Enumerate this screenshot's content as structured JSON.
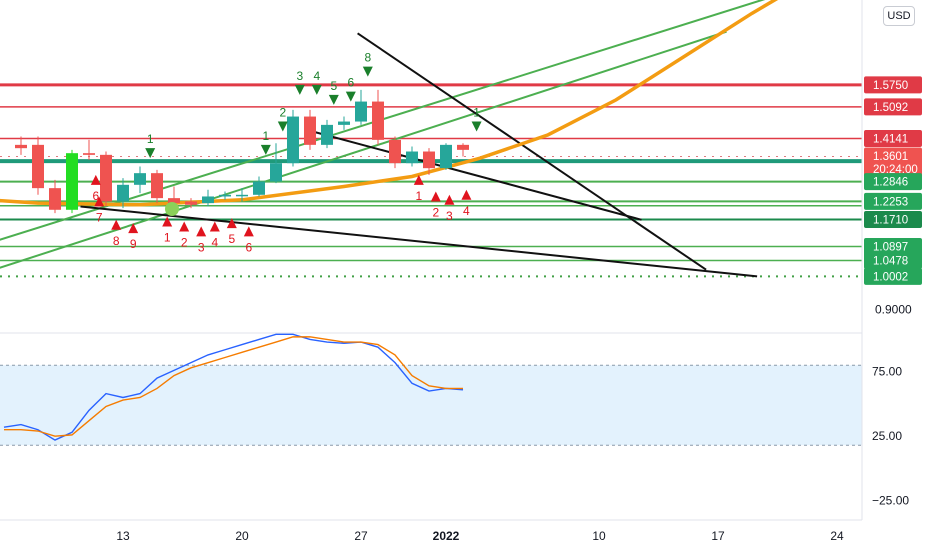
{
  "currency": "USD",
  "chart_data": {
    "type": "candlestick",
    "price_axis": {
      "ylim": [
        0.83,
        1.83
      ],
      "labels": [
        {
          "value": 0.9,
          "text": "0.9000"
        }
      ],
      "badges": [
        {
          "value": 1.575,
          "text": "1.5750",
          "color": "#e03a46"
        },
        {
          "value": 1.5092,
          "text": "1.5092",
          "color": "#e03a46"
        },
        {
          "value": 1.4141,
          "text": "1.4141",
          "color": "#e03a46"
        },
        {
          "value": 1.3601,
          "text": "1.3601",
          "sub": "20:24:00",
          "color": "#ef5350"
        },
        {
          "value": 1.2846,
          "text": "1.2846",
          "color": "#26a65b"
        },
        {
          "value": 1.2253,
          "text": "1.2253",
          "color": "#26a65b"
        },
        {
          "value": 1.171,
          "text": "1.1710",
          "color": "#1b8a4c"
        },
        {
          "value": 1.0897,
          "text": "1.0897",
          "color": "#26a65b"
        },
        {
          "value": 1.0478,
          "text": "1.0478",
          "color": "#26a65b"
        },
        {
          "value": 1.0002,
          "text": "1.0002",
          "color": "#26a65b"
        }
      ]
    },
    "time_axis": {
      "labels": [
        {
          "day": 13,
          "text": "13"
        },
        {
          "day": 20,
          "text": "20"
        },
        {
          "day": 27,
          "text": "27"
        },
        {
          "day": 32,
          "text": "2022",
          "bold": true
        },
        {
          "day": 41,
          "text": "10"
        },
        {
          "day": 48,
          "text": "17"
        },
        {
          "day": 55,
          "text": "24"
        }
      ]
    },
    "candles": [
      {
        "day": 7,
        "open": 1.395,
        "high": 1.42,
        "low": 1.365,
        "close": 1.385
      },
      {
        "day": 8,
        "open": 1.395,
        "high": 1.42,
        "low": 1.245,
        "close": 1.265
      },
      {
        "day": 9,
        "open": 1.265,
        "high": 1.29,
        "low": 1.19,
        "close": 1.2
      },
      {
        "day": 10,
        "open": 1.2,
        "high": 1.38,
        "low": 1.19,
        "close": 1.37,
        "color": "#22dd22"
      },
      {
        "day": 11,
        "open": 1.37,
        "high": 1.41,
        "low": 1.35,
        "close": 1.365
      },
      {
        "day": 12,
        "open": 1.365,
        "high": 1.375,
        "low": 1.21,
        "close": 1.225
      },
      {
        "day": 13,
        "open": 1.225,
        "high": 1.295,
        "low": 1.205,
        "close": 1.275
      },
      {
        "day": 14,
        "open": 1.275,
        "high": 1.33,
        "low": 1.25,
        "close": 1.31
      },
      {
        "day": 15,
        "open": 1.31,
        "high": 1.32,
        "low": 1.22,
        "close": 1.235
      },
      {
        "day": 16,
        "open": 1.235,
        "high": 1.27,
        "low": 1.205,
        "close": 1.22
      },
      {
        "day": 17,
        "open": 1.225,
        "high": 1.235,
        "low": 1.205,
        "close": 1.215
      },
      {
        "day": 18,
        "open": 1.22,
        "high": 1.26,
        "low": 1.21,
        "close": 1.24
      },
      {
        "day": 19,
        "open": 1.24,
        "high": 1.255,
        "low": 1.23,
        "close": 1.245
      },
      {
        "day": 20,
        "open": 1.245,
        "high": 1.265,
        "low": 1.225,
        "close": 1.245
      },
      {
        "day": 21,
        "open": 1.245,
        "high": 1.3,
        "low": 1.24,
        "close": 1.285
      },
      {
        "day": 22,
        "open": 1.285,
        "high": 1.4,
        "low": 1.28,
        "close": 1.34
      },
      {
        "day": 23,
        "open": 1.34,
        "high": 1.5,
        "low": 1.33,
        "close": 1.48
      },
      {
        "day": 24,
        "open": 1.48,
        "high": 1.5,
        "low": 1.38,
        "close": 1.395
      },
      {
        "day": 25,
        "open": 1.395,
        "high": 1.47,
        "low": 1.385,
        "close": 1.455
      },
      {
        "day": 26,
        "open": 1.455,
        "high": 1.48,
        "low": 1.44,
        "close": 1.465
      },
      {
        "day": 27,
        "open": 1.465,
        "high": 1.56,
        "low": 1.455,
        "close": 1.525
      },
      {
        "day": 28,
        "open": 1.525,
        "high": 1.56,
        "low": 1.395,
        "close": 1.41
      },
      {
        "day": 29,
        "open": 1.41,
        "high": 1.42,
        "low": 1.325,
        "close": 1.34
      },
      {
        "day": 30,
        "open": 1.34,
        "high": 1.39,
        "low": 1.33,
        "close": 1.375
      },
      {
        "day": 31,
        "open": 1.375,
        "high": 1.385,
        "low": 1.305,
        "close": 1.325
      },
      {
        "day": 32,
        "open": 1.325,
        "high": 1.4,
        "low": 1.32,
        "close": 1.395
      },
      {
        "day": 33,
        "open": 1.395,
        "high": 1.4,
        "low": 1.36,
        "close": 1.38
      }
    ],
    "horizontal_levels": [
      {
        "value": 1.575,
        "color": "#e03a46",
        "width": 3
      },
      {
        "value": 1.5092,
        "color": "#e03a46",
        "width": 1.5
      },
      {
        "value": 1.4141,
        "color": "#e03a46",
        "width": 1.5
      },
      {
        "value": 1.3601,
        "color": "#e07a80",
        "width": 1,
        "style": "dotted"
      },
      {
        "value": 1.346,
        "color": "#1f9a7a",
        "width": 4
      },
      {
        "value": 1.2846,
        "color": "#4caf50",
        "width": 2
      },
      {
        "value": 1.2253,
        "color": "#4caf50",
        "width": 2
      },
      {
        "value": 1.212,
        "color": "#4caf50",
        "width": 1.5
      },
      {
        "value": 1.171,
        "color": "#1b8a4c",
        "width": 2
      },
      {
        "value": 1.0897,
        "color": "#4caf50",
        "width": 1.5
      },
      {
        "value": 1.0478,
        "color": "#4caf50",
        "width": 1.5
      },
      {
        "value": 1.0002,
        "color": "#43a047",
        "width": 2,
        "style": "dotted"
      }
    ],
    "trend_lines": [
      {
        "from": [
          4.5,
          1.005
        ],
        "to": [
          48.5,
          1.735
        ],
        "color": "#4caf50"
      },
      {
        "from": [
          4.5,
          1.09
        ],
        "to": [
          56.5,
          1.925
        ],
        "color": "#4caf50"
      },
      {
        "from": [
          26.8,
          1.73
        ],
        "to": [
          47.3,
          1.02
        ],
        "color": "#111111"
      },
      {
        "from": [
          23.8,
          1.44
        ],
        "to": [
          43.5,
          1.17
        ],
        "color": "#111111"
      },
      {
        "from": [
          10.5,
          1.21
        ],
        "to": [
          50.3,
          1.0
        ],
        "color": "#111111"
      }
    ],
    "ma_curve": {
      "color": "#f39c12",
      "points": [
        [
          2,
          1.24
        ],
        [
          8,
          1.22
        ],
        [
          14,
          1.215
        ],
        [
          20,
          1.23
        ],
        [
          26,
          1.27
        ],
        [
          30,
          1.3
        ],
        [
          34,
          1.355
        ],
        [
          38,
          1.425
        ],
        [
          42,
          1.53
        ],
        [
          46,
          1.66
        ],
        [
          50,
          1.79
        ],
        [
          53,
          1.88
        ]
      ]
    },
    "markers": [
      {
        "day": 11.4,
        "value": 1.29,
        "label": "6",
        "dir": "up",
        "color": "#e0141e"
      },
      {
        "day": 11.6,
        "value": 1.225,
        "label": "7",
        "dir": "up",
        "color": "#e0141e"
      },
      {
        "day": 12.6,
        "value": 1.155,
        "label": "8",
        "dir": "up",
        "color": "#e0141e"
      },
      {
        "day": 13.6,
        "value": 1.145,
        "label": "9",
        "dir": "up",
        "color": "#e0141e"
      },
      {
        "day": 15.6,
        "value": 1.165,
        "label": "1",
        "dir": "up",
        "color": "#e0141e"
      },
      {
        "day": 16.6,
        "value": 1.15,
        "label": "2",
        "dir": "up",
        "color": "#e0141e"
      },
      {
        "day": 17.6,
        "value": 1.135,
        "label": "3",
        "dir": "up",
        "color": "#e0141e"
      },
      {
        "day": 18.4,
        "value": 1.15,
        "label": "4",
        "dir": "up",
        "color": "#e0141e"
      },
      {
        "day": 19.4,
        "value": 1.16,
        "label": "5",
        "dir": "up",
        "color": "#e0141e"
      },
      {
        "day": 20.4,
        "value": 1.135,
        "label": "6",
        "dir": "up",
        "color": "#e0141e"
      },
      {
        "day": 30.4,
        "value": 1.29,
        "label": "1",
        "dir": "up",
        "color": "#e0141e"
      },
      {
        "day": 31.4,
        "value": 1.24,
        "label": "2",
        "dir": "up",
        "color": "#e0141e"
      },
      {
        "day": 32.2,
        "value": 1.23,
        "label": "3",
        "dir": "up",
        "color": "#e0141e"
      },
      {
        "day": 33.2,
        "value": 1.245,
        "label": "4",
        "dir": "up",
        "color": "#e0141e"
      },
      {
        "day": 14.6,
        "value": 1.37,
        "label": "1",
        "dir": "down",
        "color": "#1a7f2b"
      },
      {
        "day": 21.4,
        "value": 1.38,
        "label": "1",
        "dir": "down",
        "color": "#1a7f2b"
      },
      {
        "day": 22.4,
        "value": 1.45,
        "label": "2",
        "dir": "down",
        "color": "#1a7f2b"
      },
      {
        "day": 23.4,
        "value": 1.56,
        "label": "3",
        "dir": "down",
        "color": "#1a7f2b"
      },
      {
        "day": 24.4,
        "value": 1.56,
        "label": "4",
        "dir": "down",
        "color": "#1a7f2b"
      },
      {
        "day": 25.4,
        "value": 1.53,
        "label": "5",
        "dir": "down",
        "color": "#1a7f2b"
      },
      {
        "day": 26.4,
        "value": 1.54,
        "label": "6",
        "dir": "down",
        "color": "#1a7f2b"
      },
      {
        "day": 27.4,
        "value": 1.615,
        "label": "8",
        "dir": "down",
        "color": "#1a7f2b"
      },
      {
        "day": 33.8,
        "value": 1.45,
        "label": "1",
        "dir": "down",
        "color": "#1a7f2b"
      }
    ],
    "oscillator": {
      "ylim": [
        -40,
        105
      ],
      "labels": [
        {
          "value": 75,
          "text": "75.00"
        },
        {
          "value": 25,
          "text": "25.00"
        },
        {
          "value": -25,
          "text": "−25.00"
        }
      ],
      "band": [
        18,
        80
      ],
      "series": [
        {
          "color": "#2962ff",
          "values": [
            [
              6,
              32
            ],
            [
              7,
              34
            ],
            [
              8,
              30
            ],
            [
              9,
              22
            ],
            [
              10,
              28
            ],
            [
              11,
              45
            ],
            [
              12,
              58
            ],
            [
              13,
              55
            ],
            [
              14,
              58
            ],
            [
              15,
              70
            ],
            [
              16,
              76
            ],
            [
              17,
              82
            ],
            [
              18,
              88
            ],
            [
              19,
              92
            ],
            [
              20,
              96
            ],
            [
              21,
              100
            ],
            [
              22,
              104
            ],
            [
              23,
              104
            ],
            [
              24,
              100
            ],
            [
              25,
              98
            ],
            [
              26,
              97
            ],
            [
              27,
              98
            ],
            [
              28,
              94
            ],
            [
              29,
              82
            ],
            [
              30,
              66
            ],
            [
              31,
              60
            ],
            [
              32,
              62
            ],
            [
              33,
              61
            ]
          ]
        },
        {
          "color": "#f57c00",
          "values": [
            [
              6,
              30
            ],
            [
              7,
              30
            ],
            [
              8,
              29
            ],
            [
              9,
              25
            ],
            [
              10,
              26
            ],
            [
              11,
              37
            ],
            [
              12,
              48
            ],
            [
              13,
              53
            ],
            [
              14,
              55
            ],
            [
              15,
              62
            ],
            [
              16,
              72
            ],
            [
              17,
              78
            ],
            [
              18,
              82
            ],
            [
              19,
              86
            ],
            [
              20,
              90
            ],
            [
              21,
              94
            ],
            [
              22,
              98
            ],
            [
              23,
              102
            ],
            [
              24,
              102
            ],
            [
              25,
              100
            ],
            [
              26,
              98
            ],
            [
              27,
              98
            ],
            [
              28,
              96
            ],
            [
              29,
              88
            ],
            [
              30,
              72
            ],
            [
              31,
              64
            ],
            [
              32,
              62
            ],
            [
              33,
              62
            ]
          ]
        }
      ]
    }
  }
}
